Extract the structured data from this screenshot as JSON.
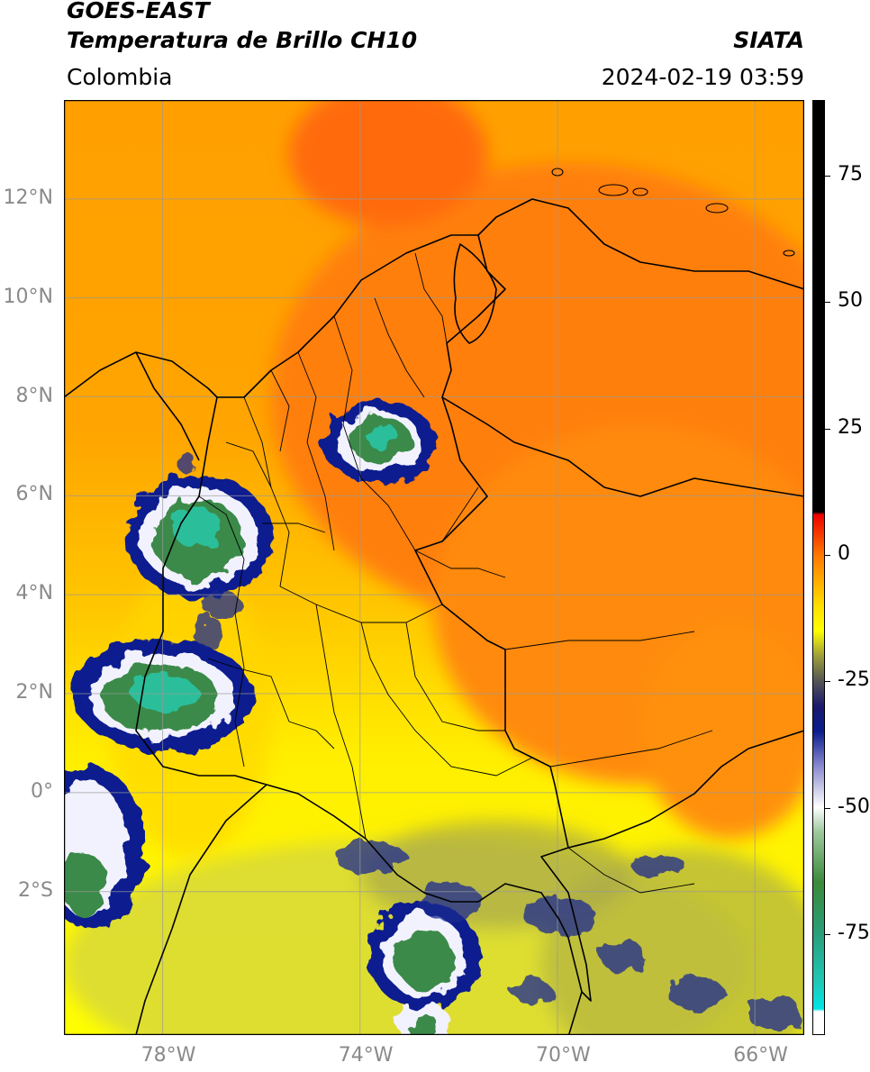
{
  "header": {
    "satellite": "GOES-EAST",
    "product": "Temperatura de Brillo CH10",
    "region": "Colombia",
    "agency": "SIATA",
    "datetime": "2024-02-19 03:59"
  },
  "map": {
    "lon_range": [
      -80.0,
      -65.0
    ],
    "lat_range": [
      -4.9,
      14.0
    ],
    "gridlines": true,
    "lat_ticks": [
      {
        "value": 12,
        "label": "12°N"
      },
      {
        "value": 10,
        "label": "10°N"
      },
      {
        "value": 8,
        "label": "8°N"
      },
      {
        "value": 6,
        "label": "6°N"
      },
      {
        "value": 4,
        "label": "4°N"
      },
      {
        "value": 2,
        "label": "2°N"
      },
      {
        "value": 0,
        "label": "0°"
      },
      {
        "value": -2,
        "label": "2°S"
      }
    ],
    "lon_ticks": [
      {
        "value": -78,
        "label": "78°W"
      },
      {
        "value": -74,
        "label": "74°W"
      },
      {
        "value": -70,
        "label": "70°W"
      },
      {
        "value": -66,
        "label": "66°W"
      }
    ]
  },
  "colorbar": {
    "min": -95,
    "max": 90,
    "ticks": [
      {
        "value": 75,
        "label": "75"
      },
      {
        "value": 50,
        "label": "50"
      },
      {
        "value": 25,
        "label": "25"
      },
      {
        "value": 0,
        "label": "0"
      },
      {
        "value": -25,
        "label": "-25"
      },
      {
        "value": -50,
        "label": "-50"
      },
      {
        "value": -75,
        "label": "-75"
      }
    ],
    "stops": [
      {
        "value": -95,
        "color": "#ffffff"
      },
      {
        "value": -90.5,
        "color": "#ffffff"
      },
      {
        "value": -90,
        "color": "#00e5e5"
      },
      {
        "value": -85,
        "color": "#1fc9b8"
      },
      {
        "value": -75,
        "color": "#2a9e7a"
      },
      {
        "value": -65,
        "color": "#3a8a3a"
      },
      {
        "value": -55,
        "color": "#9cc79c"
      },
      {
        "value": -50,
        "color": "#ffffff"
      },
      {
        "value": -42,
        "color": "#8b8bd0"
      },
      {
        "value": -35,
        "color": "#0b1d8f"
      },
      {
        "value": -30,
        "color": "#1a1a6e"
      },
      {
        "value": -25,
        "color": "#555555"
      },
      {
        "value": -20,
        "color": "#9e9e3a"
      },
      {
        "value": -15,
        "color": "#ffff00"
      },
      {
        "value": -10,
        "color": "#ffdd00"
      },
      {
        "value": -5,
        "color": "#ffaa00"
      },
      {
        "value": 0,
        "color": "#ff7700"
      },
      {
        "value": 8,
        "color": "#ee0000"
      },
      {
        "value": 8.5,
        "color": "#000000"
      },
      {
        "value": 90,
        "color": "#000000"
      }
    ]
  },
  "palette": {
    "warm_orange": "#ff7f0a",
    "mid_orange": "#ffa000",
    "yellow": "#ffff00",
    "olive": "#c9c93a",
    "storm_blue": "#0b1d8f",
    "storm_white": "#f2f2ff",
    "storm_green": "#3a8a4a",
    "storm_teal": "#2abf9a",
    "border": "#000000",
    "grid": "#9a9a9a"
  }
}
